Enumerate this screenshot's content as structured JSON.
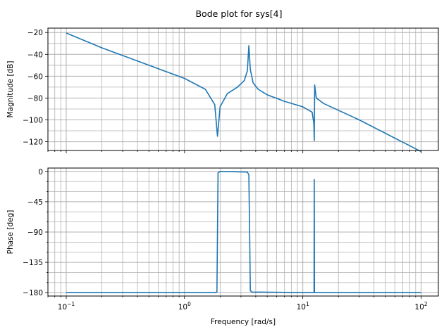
{
  "title": "Bode plot for sys[4]",
  "colors": {
    "line": "#1f77b4",
    "grid": "#b0b0b0",
    "axes": "#000000"
  },
  "chart_data": [
    {
      "name": "magnitude",
      "type": "line",
      "xscale": "log",
      "xlim": [
        0.07,
        140
      ],
      "ylim": [
        -128,
        -16
      ],
      "ylabel": "Magnitude [dB]",
      "xlabel": "",
      "grid": "on (major and minor)",
      "yticks": [
        -20,
        -40,
        -60,
        -80,
        -100,
        -120
      ],
      "ytick_labels": [
        "−20",
        "−40",
        "−60",
        "−80",
        "−100",
        "−120"
      ],
      "series": [
        {
          "x": [
            0.1,
            0.2,
            0.5,
            1.0,
            1.5,
            1.8,
            1.9,
            2.0,
            2.3,
            2.8,
            3.2,
            3.4,
            3.5,
            3.6,
            3.8,
            4.2,
            5.0,
            7.0,
            10.0,
            12.0,
            12.4,
            12.5,
            12.6,
            13.0,
            15.0,
            30.0,
            100.0
          ],
          "y": [
            -20.5,
            -34,
            -50,
            -62,
            -72,
            -86,
            -115,
            -88,
            -76,
            -70,
            -64,
            -55,
            -32,
            -54,
            -66,
            -72,
            -77,
            -83,
            -88,
            -93,
            -103,
            -119,
            -68,
            -80,
            -85,
            -100,
            -129
          ]
        }
      ]
    },
    {
      "name": "phase",
      "type": "line",
      "xscale": "log",
      "xlim": [
        0.07,
        140
      ],
      "ylim": [
        -185,
        5
      ],
      "ylabel": "Phase [deg]",
      "xlabel": "Frequency [rad/s]",
      "grid": "on (major and minor)",
      "yticks": [
        0,
        -45,
        -90,
        -135,
        -180
      ],
      "ytick_labels": [
        "0",
        "−45",
        "−90",
        "−135",
        "−180"
      ],
      "xtick_labels": [
        {
          "base": "10",
          "exp": "−1"
        },
        {
          "base": "10",
          "exp": "0"
        },
        {
          "base": "10",
          "exp": "1"
        },
        {
          "base": "10",
          "exp": "2"
        }
      ],
      "series": [
        {
          "x": [
            0.1,
            1.8,
            1.88,
            1.9,
            1.92,
            2.0,
            3.4,
            3.5,
            3.55,
            3.6,
            3.7,
            12.3,
            12.45,
            12.5,
            12.55,
            12.7,
            100.0
          ],
          "y": [
            -180,
            -180,
            -179,
            -90,
            -2,
            0,
            -1,
            -5,
            -90,
            -177,
            -179,
            -180,
            -180,
            -12,
            -180,
            -180,
            -180
          ]
        }
      ]
    }
  ]
}
